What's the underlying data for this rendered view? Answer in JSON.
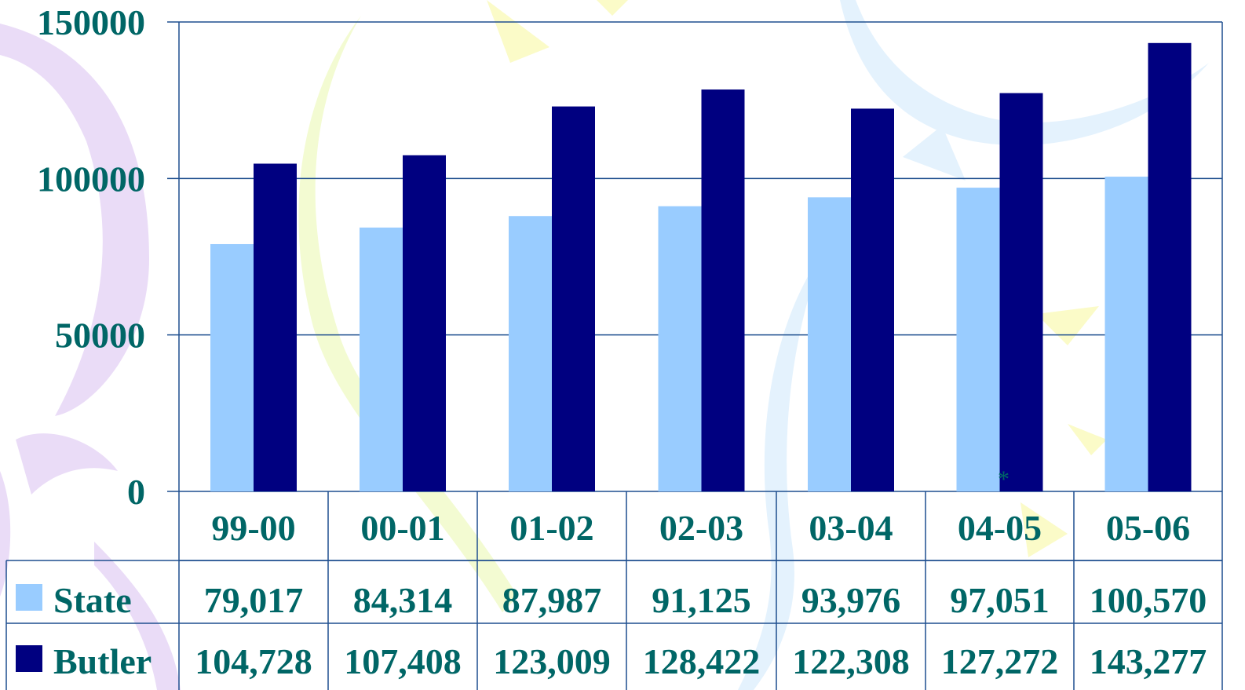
{
  "chart_data": {
    "type": "bar",
    "categories": [
      "99-00",
      "00-01",
      "01-02",
      "02-03",
      "03-04",
      "04-05",
      "05-06"
    ],
    "series": [
      {
        "name": "State",
        "color": "#99ccff",
        "values": [
          79017,
          84314,
          87987,
          91125,
          93976,
          97051,
          100570
        ],
        "labels": [
          "79,017",
          "84,314",
          "87,987",
          "91,125",
          "93,976",
          "97,051",
          "100,570"
        ]
      },
      {
        "name": "Butler",
        "color": "#000080",
        "values": [
          104728,
          107408,
          123009,
          128422,
          122308,
          127272,
          143277
        ],
        "labels": [
          "104,728",
          "107,408",
          "123,009",
          "128,422",
          "122,308",
          "127,272",
          "143,277"
        ]
      }
    ],
    "yticks": [
      "0",
      "50000",
      "100000",
      "150000"
    ],
    "ylim": [
      0,
      150000
    ],
    "grid": true,
    "data_table": true,
    "annotation": "*",
    "annotation_category": "04-05"
  }
}
